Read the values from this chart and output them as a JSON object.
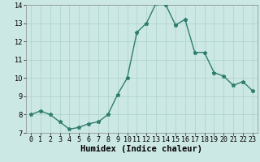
{
  "x": [
    0,
    1,
    2,
    3,
    4,
    5,
    6,
    7,
    8,
    9,
    10,
    11,
    12,
    13,
    14,
    15,
    16,
    17,
    18,
    19,
    20,
    21,
    22,
    23
  ],
  "y": [
    8.0,
    8.2,
    8.0,
    7.6,
    7.2,
    7.3,
    7.5,
    7.6,
    8.0,
    9.1,
    10.0,
    12.5,
    13.0,
    14.1,
    14.0,
    12.9,
    13.2,
    11.4,
    11.4,
    10.3,
    10.1,
    9.6,
    9.8,
    9.3
  ],
  "line_color": "#2e7d6e",
  "marker": "*",
  "marker_color": "#2e7d6e",
  "bg_color": "#cce8e4",
  "grid_color": "#b0d4ce",
  "xlabel": "Humidex (Indice chaleur)",
  "xlim": [
    -0.5,
    23.5
  ],
  "ylim": [
    7,
    14
  ],
  "yticks": [
    7,
    8,
    9,
    10,
    11,
    12,
    13,
    14
  ],
  "xticks": [
    0,
    1,
    2,
    3,
    4,
    5,
    6,
    7,
    8,
    9,
    10,
    11,
    12,
    13,
    14,
    15,
    16,
    17,
    18,
    19,
    20,
    21,
    22,
    23
  ],
  "xlabel_fontsize": 7.5,
  "tick_fontsize": 6,
  "line_width": 1.0,
  "marker_size": 3.5
}
